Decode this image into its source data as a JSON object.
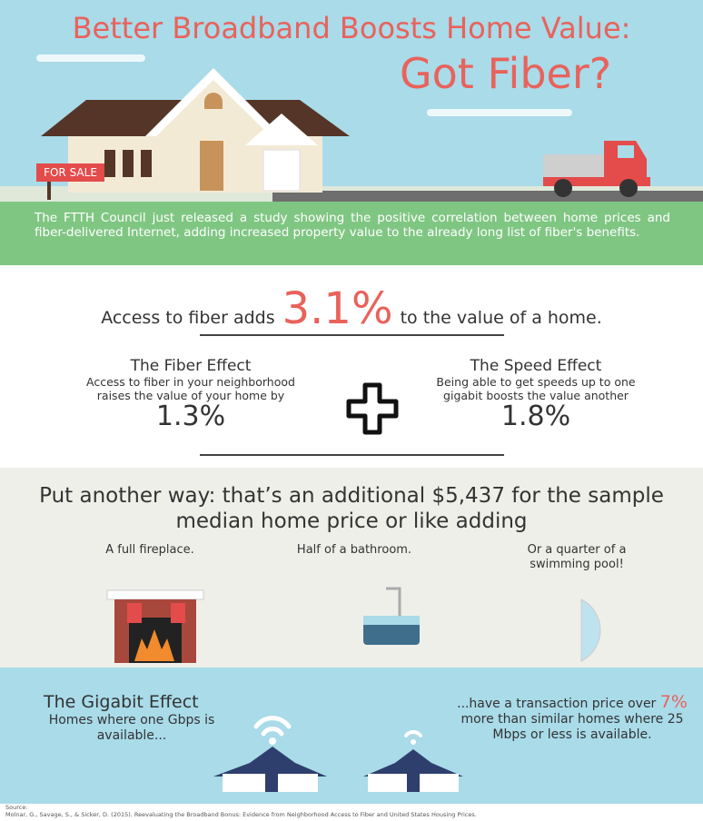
{
  "header": {
    "title_line1": "Better Broadband Boosts Home Value:",
    "title_line2": "Got Fiber?",
    "sign": "FOR SALE",
    "intro": "The FTTH Council just released a study showing the positive correlation between home prices and fiber-delivered Internet, adding increased property value to the already long list of fiber's benefits."
  },
  "headline": {
    "prefix": "Access to fiber adds",
    "figure": "3.1%",
    "suffix": "to the value of a home."
  },
  "effects": [
    {
      "title": "The Fiber Effect",
      "text": "Access to fiber in your neighborhood raises the value of your home by",
      "figure": "1.3%"
    },
    {
      "title": "The Speed Effect",
      "text": "Being able to get speeds up to one gigabit boosts the value another",
      "figure": "1.8%"
    }
  ],
  "comparison": {
    "heading": "Put another way: that’s an additional $5,437 for the sample median home price or like adding",
    "items": [
      "A full fireplace.",
      "Half of a bathroom.",
      "Or a quarter of a swimming pool!"
    ]
  },
  "gigabit": {
    "title": "The Gigabit Effect",
    "left": "Homes where one Gbps is available...",
    "right_prefix": "...have a transaction price over",
    "right_figure": "7%",
    "right_suffix": "more than similar homes where 25 Mbps or less is available."
  },
  "source": {
    "label": "Source:",
    "citation": "Molnar, G., Savage, S., & Sicker, D. (2015). Reevaluating the Broadband Bonus: Evidence from Neighborhood Access to Fiber and United States Housing Prices."
  }
}
